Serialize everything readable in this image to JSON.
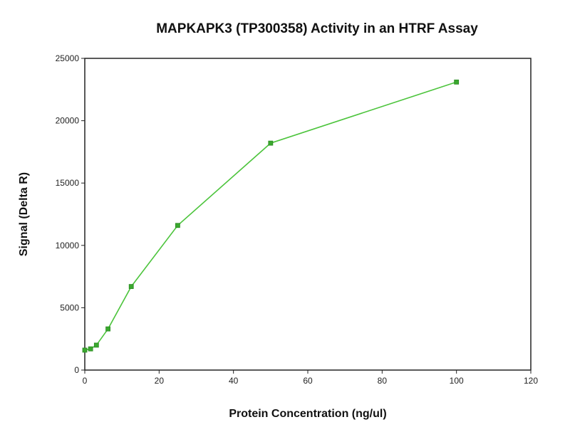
{
  "chart_data": {
    "type": "line",
    "title": "MAPKAPK3 (TP300358) Activity in an HTRF Assay",
    "xlabel": "Protein Concentration (ng/ul)",
    "ylabel": "Signal (Delta R)",
    "xlim": [
      0,
      120
    ],
    "ylim": [
      0,
      25000
    ],
    "xticks": [
      "0",
      "20",
      "40",
      "60",
      "80",
      "100",
      "120"
    ],
    "yticks": [
      "0",
      "5000",
      "10000",
      "15000",
      "20000",
      "25000"
    ],
    "grid": false,
    "legend": "none",
    "series": [
      {
        "color": "#4cc43c",
        "marker": "square",
        "x": [
          0,
          1.56,
          3.13,
          6.25,
          12.5,
          25,
          50,
          100
        ],
        "y": [
          1600,
          1700,
          2000,
          3300,
          6700,
          11600,
          18200,
          23100
        ]
      }
    ]
  }
}
